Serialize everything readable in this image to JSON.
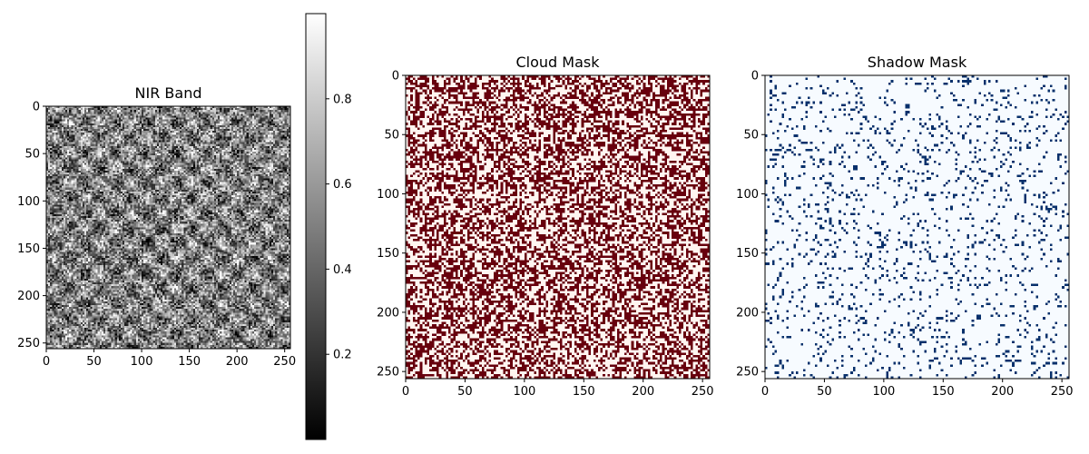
{
  "chart_data": [
    {
      "type": "heatmap",
      "title": "NIR Band",
      "colormap": "gray",
      "xlim": [
        0,
        256
      ],
      "ylim": [
        256,
        0
      ],
      "xticks": [
        0,
        50,
        100,
        150,
        200,
        250
      ],
      "yticks": [
        0,
        50,
        100,
        150,
        200,
        250
      ],
      "value_range": [
        0.0,
        1.0
      ],
      "pattern": "noisy texture with periodic tile structure",
      "colorbar": {
        "ticks": [
          0.2,
          0.4,
          0.6,
          0.8
        ],
        "range": [
          0.0,
          1.0
        ],
        "colors": [
          "#000000",
          "#ffffff"
        ]
      }
    },
    {
      "type": "heatmap",
      "title": "Cloud Mask",
      "colormap": "Reds",
      "xlim": [
        0,
        256
      ],
      "ylim": [
        256,
        0
      ],
      "xticks": [
        0,
        50,
        100,
        150,
        200,
        250
      ],
      "yticks": [
        0,
        50,
        100,
        150,
        200,
        250
      ],
      "values_present": [
        0,
        1
      ],
      "fraction_of_ones": 0.5,
      "colors": {
        "0": "#fff5f0",
        "1": "#67000d"
      }
    },
    {
      "type": "heatmap",
      "title": "Shadow Mask",
      "colormap": "Blues",
      "xlim": [
        0,
        256
      ],
      "ylim": [
        256,
        0
      ],
      "xticks": [
        0,
        50,
        100,
        150,
        200,
        250
      ],
      "yticks": [
        0,
        50,
        100,
        150,
        200,
        250
      ],
      "values_present": [
        0,
        1
      ],
      "fraction_of_ones": 0.1,
      "colors": {
        "0": "#f7fbff",
        "1": "#08306b"
      }
    }
  ]
}
